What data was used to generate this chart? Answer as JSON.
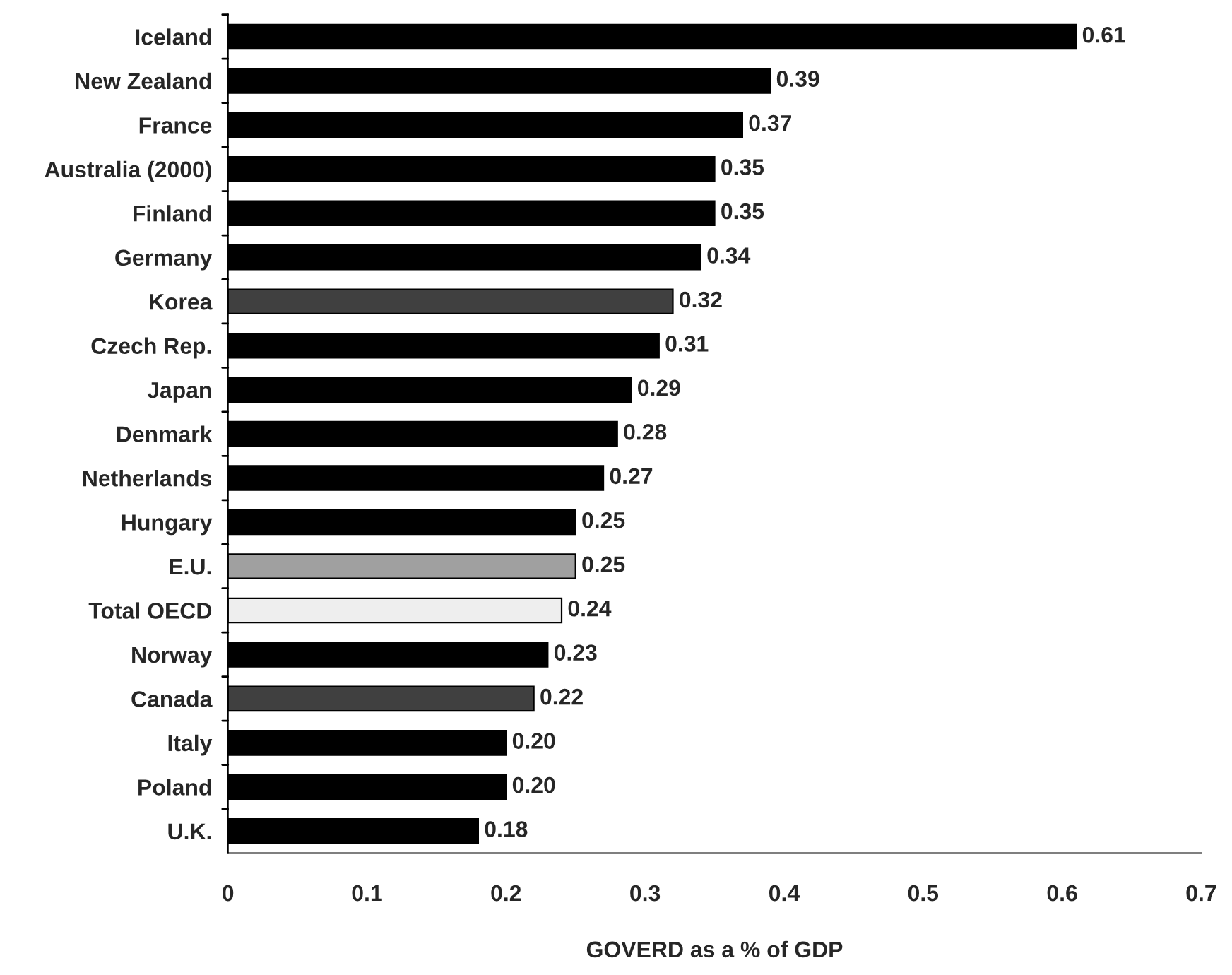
{
  "chart_data": {
    "type": "bar",
    "orientation": "horizontal",
    "xlabel": "GOVERD as a % of GDP",
    "categories": [
      "Iceland",
      "New Zealand",
      "France",
      "Australia (2000)",
      "Finland",
      "Germany",
      "Korea",
      "Czech Rep.",
      "Japan",
      "Denmark",
      "Netherlands",
      "Hungary",
      "E.U.",
      "Total OECD",
      "Norway",
      "Canada",
      "Italy",
      "Poland",
      "U.K."
    ],
    "values": [
      0.61,
      0.39,
      0.37,
      0.35,
      0.35,
      0.34,
      0.32,
      0.31,
      0.29,
      0.28,
      0.27,
      0.25,
      0.25,
      0.24,
      0.23,
      0.22,
      0.2,
      0.2,
      0.18
    ],
    "value_labels": [
      "0.61",
      "0.39",
      "0.37",
      "0.35",
      "0.35",
      "0.34",
      "0.32",
      "0.31",
      "0.29",
      "0.28",
      "0.27",
      "0.25",
      "0.25",
      "0.24",
      "0.23",
      "0.22",
      "0.20",
      "0.20",
      "0.18"
    ],
    "colors": [
      "#000000",
      "#000000",
      "#000000",
      "#000000",
      "#000000",
      "#000000",
      "#404040",
      "#000000",
      "#000000",
      "#000000",
      "#000000",
      "#000000",
      "#a0a0a0",
      "#eeeeee",
      "#000000",
      "#404040",
      "#000000",
      "#000000",
      "#000000"
    ],
    "xlim": [
      0,
      0.7
    ],
    "xticks": [
      0,
      0.1,
      0.2,
      0.3,
      0.4,
      0.5,
      0.6,
      0.7
    ],
    "grid": false,
    "legend": false
  }
}
